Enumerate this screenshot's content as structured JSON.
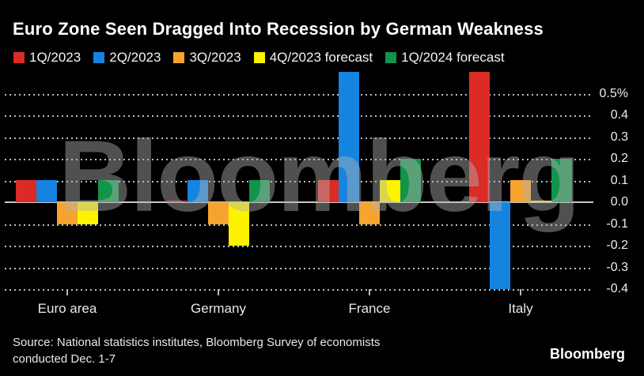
{
  "title": "Euro Zone Seen Dragged Into Recession by German Weakness",
  "watermark": "Bloomberg",
  "logo": "Bloomberg",
  "source": {
    "line1": "Source: National statistics institutes, Bloomberg Survey of economists",
    "line2": "conducted Dec. 1-7"
  },
  "colors": {
    "background": "#000000",
    "title_text": "#ffffff",
    "axis_text": "#ededed",
    "gridline": "#bdbdbd",
    "zero_line": "#c8c8c8",
    "watermark": "#b2b2b2",
    "watermark_opacity": 0.45
  },
  "chart_data": {
    "type": "bar",
    "title": "Euro Zone Seen Dragged Into Recession by German Weakness",
    "categories": [
      "Euro area",
      "Germany",
      "France",
      "Italy"
    ],
    "series": [
      {
        "name": "1Q/2023",
        "color": "#db2b26",
        "values": [
          0.1,
          0.0,
          0.1,
          0.6
        ]
      },
      {
        "name": "2Q/2023",
        "color": "#1484e0",
        "values": [
          0.1,
          0.1,
          0.6,
          -0.4
        ]
      },
      {
        "name": "3Q/2023",
        "color": "#f6a42d",
        "values": [
          -0.1,
          -0.1,
          -0.1,
          0.1
        ]
      },
      {
        "name": "4Q/2023 forecast",
        "color": "#fdf200",
        "values": [
          -0.1,
          -0.2,
          0.1,
          0.0
        ]
      },
      {
        "name": "1Q/2024 forecast",
        "color": "#12944b",
        "values": [
          0.1,
          0.1,
          0.2,
          0.2
        ]
      }
    ],
    "ylabel": "",
    "xlabel": "",
    "ylim": [
      -0.4,
      0.6
    ],
    "yticks": [
      0.5,
      0.4,
      0.3,
      0.2,
      0.1,
      0.0,
      -0.1,
      -0.2,
      -0.3,
      -0.4
    ],
    "ytick_labels": [
      "0.5%",
      "0.4",
      "0.3",
      "0.2",
      "0.1",
      "0.0",
      "-0.1",
      "-0.2",
      "-0.3",
      "-0.4"
    ],
    "grid": "dotted-horizontal",
    "legend_position": "top"
  }
}
